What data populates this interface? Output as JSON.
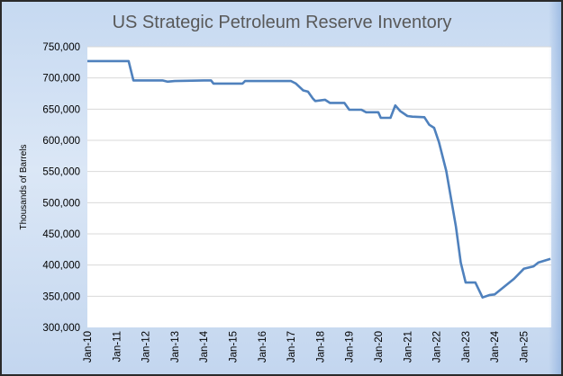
{
  "chart_data": {
    "type": "line",
    "title": "US Strategic Petroleum Reserve Inventory",
    "xlabel": "",
    "ylabel": "Thousands of Barrels",
    "ylim": [
      300000,
      750000
    ],
    "xlim": [
      "2010-01",
      "2025-12"
    ],
    "grid": true,
    "yticks": [
      "300,000",
      "350,000",
      "400,000",
      "450,000",
      "500,000",
      "550,000",
      "600,000",
      "650,000",
      "700,000",
      "750,000"
    ],
    "xticks": [
      "Jan-10",
      "Jan-11",
      "Jan-12",
      "Jan-13",
      "Jan-14",
      "Jan-15",
      "Jan-16",
      "Jan-17",
      "Jan-18",
      "Jan-19",
      "Jan-20",
      "Jan-21",
      "Jan-22",
      "Jan-23",
      "Jan-24",
      "Jan-25"
    ],
    "line_color": "#4f81bd",
    "series": [
      {
        "x": [
          "2010-01",
          "2011-01",
          "2011-06",
          "2011-08",
          "2012-01",
          "2012-08",
          "2012-10",
          "2013-01",
          "2014-01",
          "2014-04",
          "2014-05",
          "2015-01",
          "2015-05",
          "2015-06",
          "2016-01",
          "2017-01",
          "2017-03",
          "2017-06",
          "2017-08",
          "2017-10",
          "2017-11",
          "2018-03",
          "2018-05",
          "2018-11",
          "2019-01",
          "2019-06",
          "2019-08",
          "2020-01",
          "2020-02",
          "2020-06",
          "2020-08",
          "2020-10",
          "2021-01",
          "2021-03",
          "2021-08",
          "2021-10",
          "2021-12",
          "2022-02",
          "2022-05",
          "2022-09",
          "2022-11",
          "2023-01",
          "2023-05",
          "2023-08",
          "2023-11",
          "2024-01",
          "2024-09",
          "2025-01",
          "2025-05",
          "2025-07",
          "2025-12"
        ],
        "values": [
          727000,
          727000,
          727000,
          696000,
          696000,
          696000,
          694000,
          695000,
          696000,
          696000,
          691000,
          691000,
          691000,
          695000,
          695000,
          695000,
          691000,
          680000,
          678000,
          667000,
          663000,
          665000,
          660000,
          660000,
          649000,
          649000,
          645000,
          645000,
          636000,
          636000,
          656000,
          647000,
          639000,
          638000,
          637000,
          625000,
          620000,
          597000,
          551000,
          462000,
          404000,
          372000,
          372000,
          348000,
          352000,
          353000,
          378000,
          394000,
          398000,
          404000,
          410000
        ]
      }
    ]
  }
}
